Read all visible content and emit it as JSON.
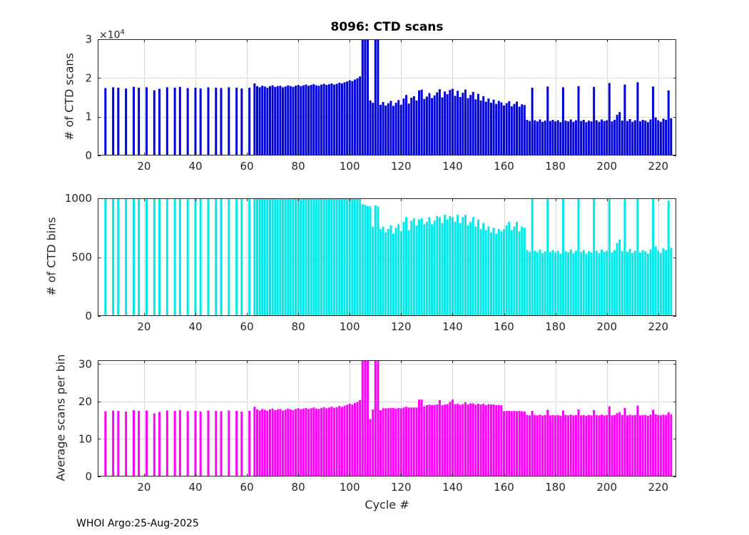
{
  "figure": {
    "title": "8096: CTD scans",
    "xlabel": "Cycle #",
    "footer": "WHOI Argo:25-Aug-2025",
    "background": "#ffffff"
  },
  "axes": {
    "xlim": [
      2,
      227
    ],
    "xticks": [
      20,
      40,
      60,
      80,
      100,
      120,
      140,
      160,
      180,
      200,
      220
    ],
    "grid": true,
    "box_color": "#262626",
    "grid_color": "#dcdcdc"
  },
  "cycles": [
    5,
    8,
    10,
    13,
    16,
    18,
    21,
    24,
    26,
    29,
    32,
    34,
    37,
    40,
    42,
    45,
    48,
    50,
    53,
    56,
    58,
    61,
    63,
    64,
    65,
    66,
    67,
    68,
    69,
    70,
    71,
    72,
    73,
    74,
    75,
    76,
    77,
    78,
    79,
    80,
    81,
    82,
    83,
    84,
    85,
    86,
    87,
    88,
    89,
    90,
    91,
    92,
    93,
    94,
    95,
    96,
    97,
    98,
    99,
    100,
    101,
    102,
    103,
    104,
    105,
    106,
    107,
    108,
    109,
    110,
    111,
    112,
    113,
    114,
    115,
    116,
    117,
    118,
    119,
    120,
    121,
    122,
    123,
    124,
    125,
    126,
    127,
    128,
    129,
    130,
    131,
    132,
    133,
    134,
    135,
    136,
    137,
    138,
    139,
    140,
    141,
    142,
    143,
    144,
    145,
    146,
    147,
    148,
    149,
    150,
    151,
    152,
    153,
    154,
    155,
    156,
    157,
    158,
    159,
    160,
    161,
    162,
    163,
    164,
    165,
    166,
    167,
    168,
    169,
    170,
    171,
    172,
    173,
    174,
    175,
    176,
    177,
    178,
    179,
    180,
    181,
    182,
    183,
    184,
    185,
    186,
    187,
    188,
    189,
    190,
    191,
    192,
    193,
    194,
    195,
    196,
    197,
    198,
    199,
    200,
    201,
    202,
    203,
    204,
    205,
    206,
    207,
    208,
    209,
    210,
    211,
    212,
    213,
    214,
    215,
    216,
    217,
    218,
    219,
    220,
    221,
    222,
    223,
    224,
    225
  ],
  "chart_data": [
    {
      "type": "bar",
      "name": "ctd-scans",
      "title": "8096: CTD scans",
      "ylabel": "# of CTD scans",
      "y_multiplier_base": "×10",
      "y_multiplier_exp": "4",
      "bar_color": "#0000dd",
      "ylim": [
        0,
        30000
      ],
      "yticks": [
        0,
        10000,
        20000,
        30000
      ],
      "ytick_labels": [
        "0",
        "1",
        "2",
        "3"
      ],
      "x_key": "cycles",
      "values": [
        17400,
        17600,
        17500,
        17300,
        17700,
        17500,
        17600,
        16800,
        17200,
        17600,
        17500,
        17700,
        17400,
        17500,
        17300,
        17600,
        17500,
        17400,
        17600,
        17500,
        17300,
        17500,
        18600,
        17900,
        17600,
        18000,
        17800,
        17500,
        17900,
        18100,
        17700,
        17900,
        18000,
        17600,
        17800,
        18100,
        17900,
        17700,
        18000,
        18200,
        17900,
        18100,
        18300,
        18000,
        18200,
        18400,
        18100,
        18000,
        18300,
        18500,
        18200,
        18400,
        18600,
        18300,
        18500,
        18800,
        18600,
        18900,
        19100,
        19400,
        19200,
        19600,
        19900,
        20400,
        32500,
        34000,
        31500,
        14200,
        13600,
        33000,
        32000,
        13100,
        13800,
        12900,
        13500,
        14100,
        12800,
        13600,
        14300,
        13100,
        14700,
        15600,
        13400,
        14900,
        15300,
        14200,
        16800,
        17000,
        14600,
        15200,
        16100,
        14800,
        15500,
        16300,
        17100,
        15000,
        16500,
        15800,
        16900,
        17200,
        15400,
        16700,
        15100,
        16200,
        17000,
        14800,
        15600,
        16400,
        14500,
        15900,
        14200,
        15300,
        13900,
        14700,
        13600,
        14400,
        13300,
        14100,
        13700,
        12900,
        13500,
        14000,
        12700,
        13300,
        13900,
        12600,
        13200,
        13000,
        9200,
        8900,
        17500,
        9100,
        8800,
        9300,
        8700,
        9000,
        17800,
        8900,
        9200,
        8800,
        9100,
        8600,
        17600,
        9000,
        8800,
        9300,
        8700,
        9100,
        17900,
        8900,
        9200,
        8600,
        9000,
        8800,
        17700,
        9100,
        8700,
        9300,
        8900,
        9100,
        18700,
        8800,
        9200,
        10500,
        11200,
        9000,
        18300,
        8900,
        9400,
        8700,
        9100,
        18900,
        8800,
        9200,
        9000,
        8600,
        9300,
        17800,
        9800,
        9100,
        8700,
        9500,
        9200,
        16800,
        9600
      ]
    },
    {
      "type": "bar",
      "name": "ctd-bins",
      "ylabel": "# of CTD bins",
      "bar_color": "#00e8e8",
      "ylim": [
        0,
        1000
      ],
      "yticks": [
        0,
        500,
        1000
      ],
      "ytick_labels": [
        "0",
        "500",
        "1000"
      ],
      "x_key": "cycles",
      "values": [
        1000,
        1000,
        1000,
        1000,
        1000,
        1000,
        1000,
        1000,
        1000,
        1000,
        1000,
        1000,
        1000,
        1000,
        1000,
        1000,
        1000,
        1000,
        1000,
        1000,
        1000,
        1000,
        1000,
        1000,
        1000,
        1000,
        1000,
        1000,
        1000,
        1000,
        1000,
        1000,
        1000,
        1000,
        1000,
        1000,
        1000,
        1000,
        1000,
        1000,
        1000,
        1000,
        1000,
        1000,
        1000,
        1000,
        1000,
        1000,
        1000,
        1000,
        1000,
        1000,
        1000,
        1000,
        1000,
        1000,
        1000,
        1000,
        1000,
        1000,
        1000,
        1000,
        1000,
        1000,
        950,
        945,
        935,
        930,
        760,
        940,
        930,
        740,
        760,
        710,
        740,
        770,
        700,
        750,
        780,
        720,
        800,
        840,
        730,
        810,
        830,
        770,
        820,
        830,
        780,
        800,
        840,
        780,
        810,
        850,
        840,
        790,
        860,
        820,
        850,
        840,
        800,
        860,
        790,
        840,
        860,
        770,
        800,
        840,
        760,
        820,
        740,
        790,
        730,
        760,
        710,
        750,
        700,
        740,
        720,
        740,
        770,
        800,
        730,
        760,
        800,
        720,
        760,
        750,
        560,
        545,
        1000,
        555,
        540,
        565,
        535,
        550,
        1000,
        545,
        560,
        540,
        555,
        530,
        1000,
        550,
        540,
        565,
        535,
        555,
        1000,
        545,
        560,
        530,
        550,
        540,
        1000,
        555,
        535,
        565,
        545,
        555,
        1000,
        540,
        560,
        620,
        650,
        550,
        1000,
        545,
        570,
        535,
        555,
        1000,
        540,
        560,
        550,
        530,
        565,
        1000,
        590,
        555,
        535,
        575,
        560,
        980,
        580
      ]
    },
    {
      "type": "bar",
      "name": "avg-scans-per-bin",
      "ylabel": "Average scans per bin",
      "xlabel": "Cycle #",
      "bar_color": "#ff00ff",
      "ylim": [
        0,
        31
      ],
      "yticks": [
        0,
        10,
        20,
        30
      ],
      "ytick_labels": [
        "0",
        "10",
        "20",
        "30"
      ],
      "x_key": "cycles",
      "values": [
        17.4,
        17.6,
        17.5,
        17.3,
        17.7,
        17.5,
        17.6,
        16.8,
        17.2,
        17.6,
        17.5,
        17.7,
        17.4,
        17.5,
        17.3,
        17.6,
        17.5,
        17.4,
        17.6,
        17.5,
        17.3,
        17.5,
        18.6,
        17.9,
        17.6,
        18.0,
        17.8,
        17.5,
        17.9,
        18.1,
        17.7,
        17.9,
        18.0,
        17.6,
        17.8,
        18.1,
        17.9,
        17.7,
        18.0,
        18.2,
        17.9,
        18.1,
        18.3,
        18.0,
        18.2,
        18.4,
        18.1,
        18.0,
        18.3,
        18.5,
        18.2,
        18.4,
        18.6,
        18.3,
        18.5,
        18.8,
        18.6,
        18.9,
        19.1,
        19.4,
        19.2,
        19.6,
        19.9,
        20.4,
        34.2,
        36.0,
        33.7,
        15.3,
        17.9,
        35.1,
        34.4,
        17.7,
        18.2,
        18.2,
        18.2,
        18.3,
        18.3,
        18.1,
        18.3,
        18.2,
        18.4,
        18.6,
        18.4,
        18.4,
        18.4,
        18.4,
        20.5,
        20.5,
        18.7,
        19.0,
        19.2,
        19.0,
        19.1,
        19.2,
        20.4,
        19.0,
        19.2,
        19.3,
        19.9,
        20.5,
        19.3,
        19.4,
        19.1,
        19.3,
        19.8,
        19.2,
        19.5,
        19.5,
        19.1,
        19.4,
        19.2,
        19.4,
        19.0,
        19.3,
        19.2,
        19.2,
        19.0,
        19.1,
        19.0,
        17.4,
        17.5,
        17.5,
        17.4,
        17.5,
        17.4,
        17.5,
        17.4,
        17.3,
        16.4,
        16.3,
        17.5,
        16.4,
        16.3,
        16.5,
        16.3,
        16.4,
        17.8,
        16.3,
        16.4,
        16.3,
        16.4,
        16.2,
        17.6,
        16.4,
        16.3,
        16.5,
        16.3,
        16.4,
        17.9,
        16.3,
        16.4,
        16.2,
        16.4,
        16.3,
        17.7,
        16.4,
        16.3,
        16.5,
        16.3,
        16.4,
        18.7,
        16.3,
        16.4,
        16.9,
        17.2,
        16.4,
        18.3,
        16.3,
        16.5,
        16.3,
        16.4,
        18.9,
        16.3,
        16.4,
        16.4,
        16.2,
        16.5,
        17.8,
        16.6,
        16.4,
        16.3,
        16.5,
        16.4,
        17.1,
        16.6
      ]
    }
  ]
}
